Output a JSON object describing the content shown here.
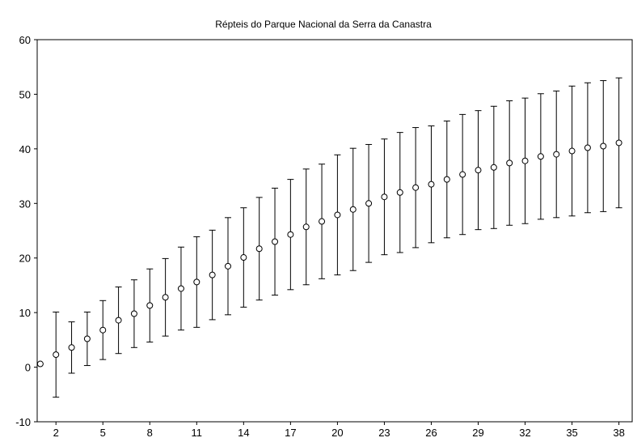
{
  "chart_data": {
    "type": "errorbar",
    "title": "Répteis do Parque Nacional da Serra da Canastra",
    "x": [
      1,
      2,
      3,
      4,
      5,
      6,
      7,
      8,
      9,
      10,
      11,
      12,
      13,
      14,
      15,
      16,
      17,
      18,
      19,
      20,
      21,
      22,
      23,
      24,
      25,
      26,
      27,
      28,
      29,
      30,
      31,
      32,
      33,
      34,
      35,
      36,
      37,
      38
    ],
    "values": [
      0.6,
      2.3,
      3.6,
      5.2,
      6.8,
      8.6,
      9.8,
      11.3,
      12.8,
      14.4,
      15.6,
      16.9,
      18.5,
      20.1,
      21.7,
      23.0,
      24.3,
      25.7,
      26.7,
      27.9,
      28.9,
      30.0,
      31.2,
      32.0,
      32.9,
      33.5,
      34.4,
      35.3,
      36.1,
      36.6,
      37.4,
      37.8,
      38.6,
      39.0,
      39.6,
      40.2,
      40.5,
      41.1
    ],
    "errors": [
      0,
      7.8,
      4.7,
      4.9,
      5.4,
      6.1,
      6.2,
      6.7,
      7.1,
      7.6,
      8.3,
      8.2,
      8.9,
      9.1,
      9.4,
      9.8,
      10.1,
      10.6,
      10.5,
      11.0,
      11.2,
      10.8,
      10.6,
      11.0,
      11.0,
      10.7,
      10.7,
      11.0,
      10.9,
      11.2,
      11.4,
      11.5,
      11.5,
      11.6,
      11.9,
      11.9,
      12.0,
      11.9
    ],
    "color": "#000000",
    "xlim": [
      0.8,
      38.9
    ],
    "xticks": [
      2,
      5,
      8,
      11,
      14,
      17,
      20,
      23,
      26,
      29,
      32,
      35,
      38
    ],
    "ylim": [
      -10,
      60
    ],
    "yticks": [
      -10,
      0,
      10,
      20,
      30,
      40,
      50,
      60
    ]
  }
}
